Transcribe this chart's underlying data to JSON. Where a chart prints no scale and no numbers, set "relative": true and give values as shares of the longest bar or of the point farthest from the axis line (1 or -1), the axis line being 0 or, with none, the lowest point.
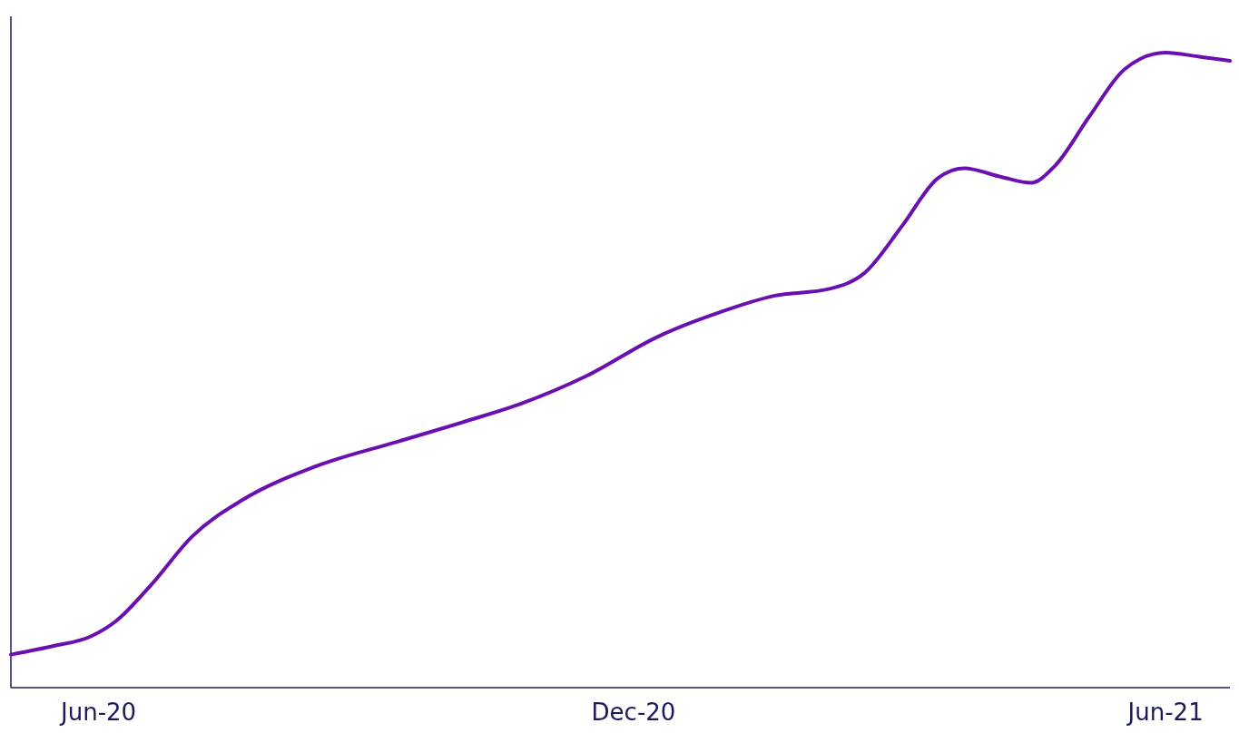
{
  "chart_data": {
    "type": "line",
    "relative": true,
    "color": "#6a0fb0",
    "x": [
      "2020-05-02",
      "2020-05-17",
      "2020-05-29",
      "2020-06-07",
      "2020-06-19",
      "2020-07-03",
      "2020-07-20",
      "2020-08-14",
      "2020-09-11",
      "2020-10-05",
      "2020-10-24",
      "2020-11-15",
      "2020-12-09",
      "2020-12-31",
      "2021-01-18",
      "2021-02-06",
      "2021-02-18",
      "2021-03-03",
      "2021-03-15",
      "2021-03-24",
      "2021-04-06",
      "2021-04-16",
      "2021-04-24",
      "2021-05-06",
      "2021-05-18",
      "2021-06-01",
      "2021-06-12",
      "2021-06-23"
    ],
    "values": [
      0.052,
      0.066,
      0.08,
      0.105,
      0.162,
      0.238,
      0.295,
      0.348,
      0.387,
      0.42,
      0.448,
      0.491,
      0.552,
      0.592,
      0.617,
      0.628,
      0.653,
      0.728,
      0.802,
      0.818,
      0.804,
      0.795,
      0.821,
      0.9,
      0.974,
      1,
      0.994,
      0.987
    ],
    "xlim": [
      "2020-05-02",
      "2021-06-23"
    ],
    "xticks": [
      {
        "value": "2020-06-01",
        "label": "Jun-20"
      },
      {
        "value": "2020-12-01",
        "label": "Dec-20"
      },
      {
        "value": "2021-06-01",
        "label": "Jun-21"
      }
    ]
  }
}
